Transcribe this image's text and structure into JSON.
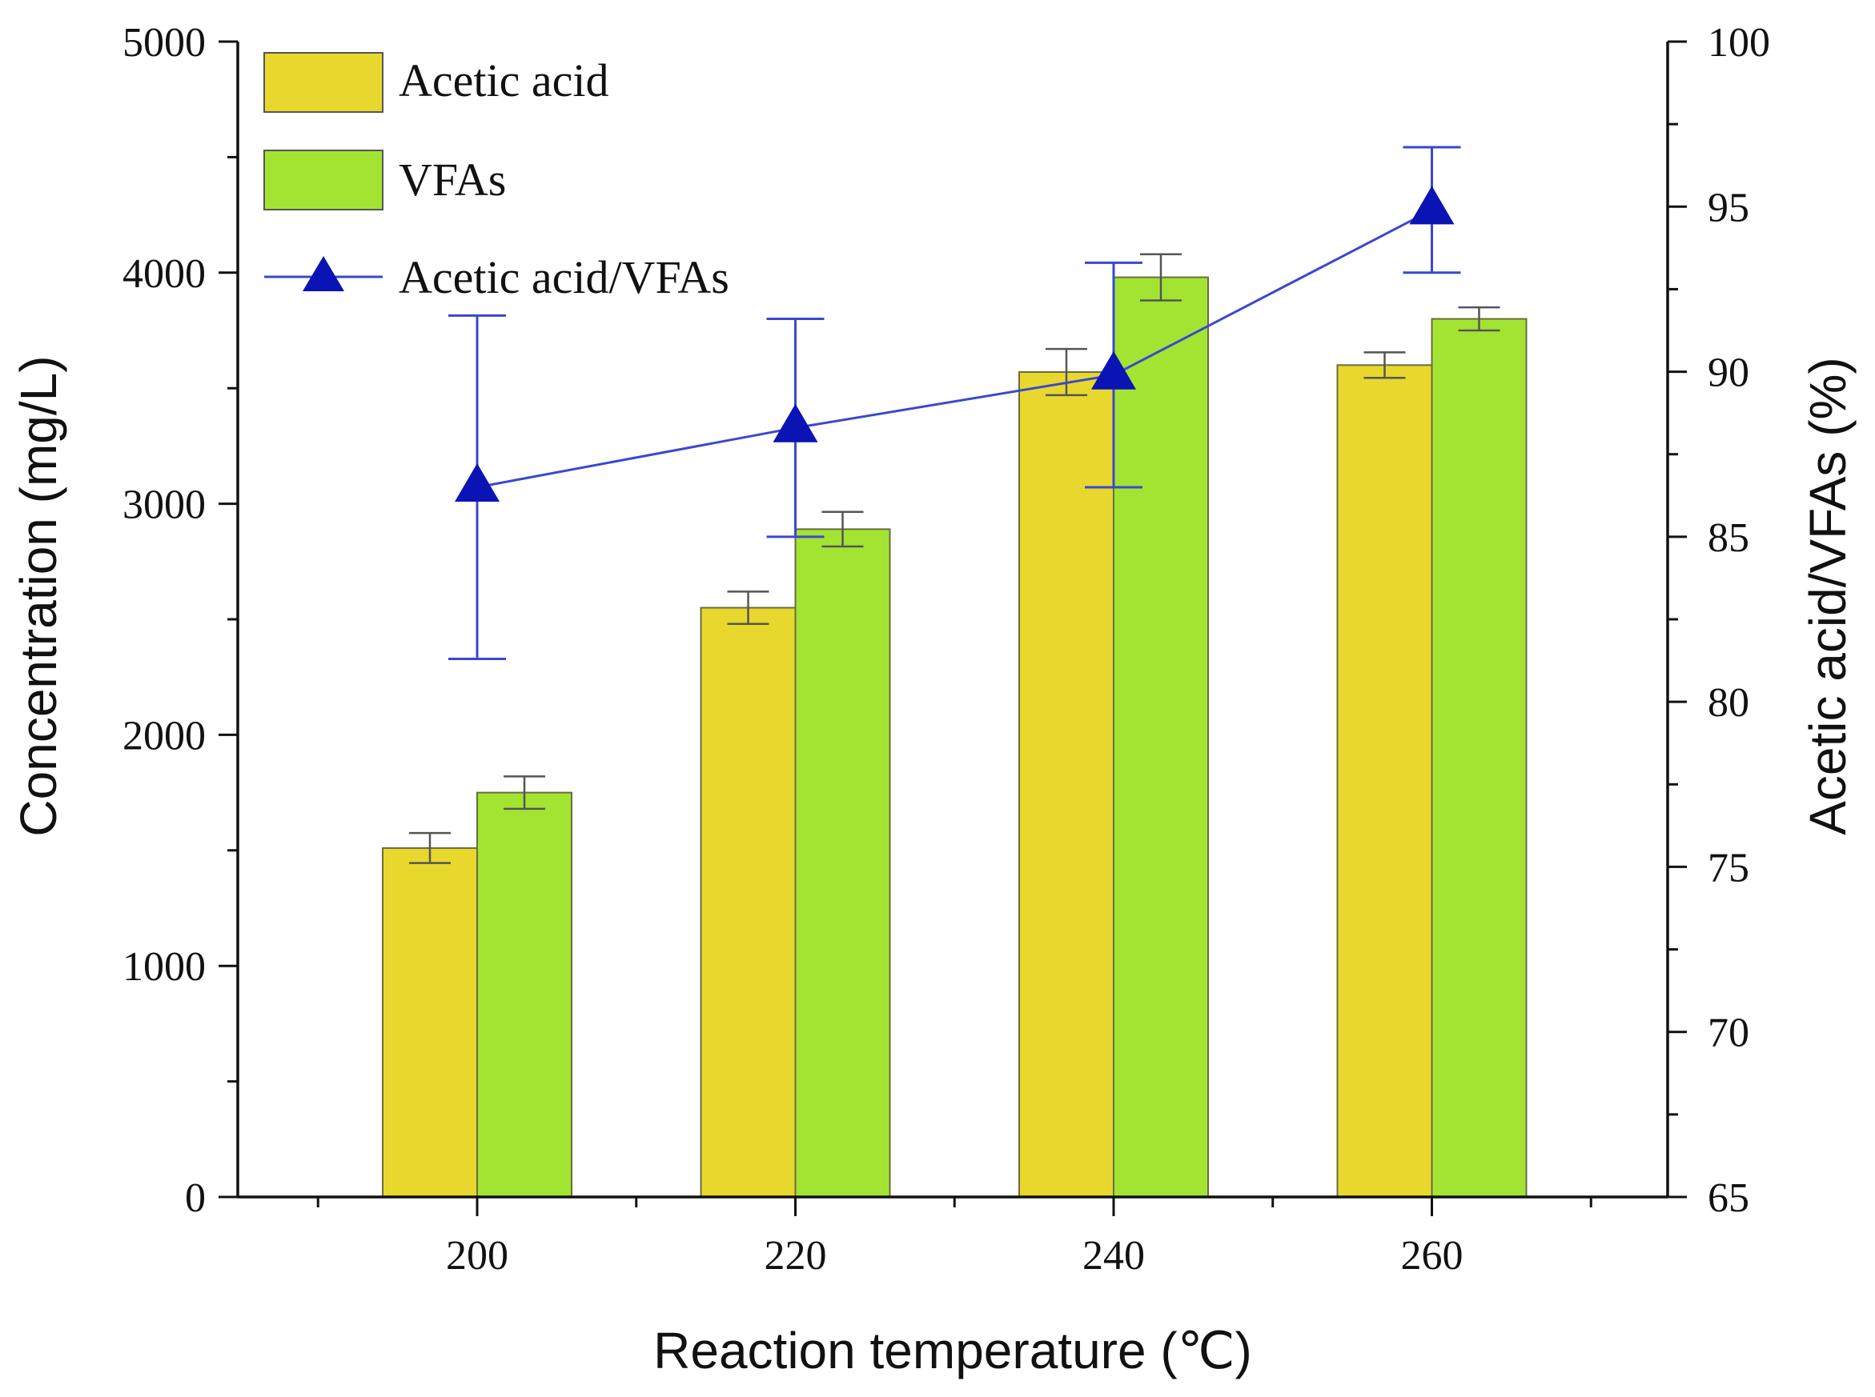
{
  "chart_data": {
    "type": "bar",
    "categories": [
      "200",
      "220",
      "240",
      "260"
    ],
    "xlabel": "Reaction temperature (℃)",
    "ylabel": "Concentration (mg/L)",
    "y2label": "Acetic acid/VFAs (%)",
    "ylim": [
      0,
      5000
    ],
    "y2lim": [
      65,
      100
    ],
    "yticks": [
      0,
      1000,
      2000,
      3000,
      4000,
      5000
    ],
    "y2ticks": [
      65,
      70,
      75,
      80,
      85,
      90,
      95,
      100
    ],
    "legend_position": "top-left",
    "series": [
      {
        "name": "Acetic acid",
        "kind": "bar",
        "color": "#e8d82e",
        "values": [
          1510,
          2550,
          3570,
          3600
        ],
        "errors": [
          65,
          70,
          100,
          55
        ]
      },
      {
        "name": "VFAs",
        "kind": "bar",
        "color": "#a3e433",
        "values": [
          1750,
          2890,
          3980,
          3800
        ],
        "errors": [
          70,
          75,
          100,
          50
        ]
      },
      {
        "name": "Acetic acid/VFAs",
        "kind": "line",
        "axis": "right",
        "color": "#0a14b4",
        "line_color": "#3a48d0",
        "marker": "triangle",
        "values": [
          86.5,
          88.3,
          89.9,
          94.9
        ],
        "errors": [
          5.2,
          3.3,
          3.4,
          1.9
        ]
      }
    ]
  }
}
